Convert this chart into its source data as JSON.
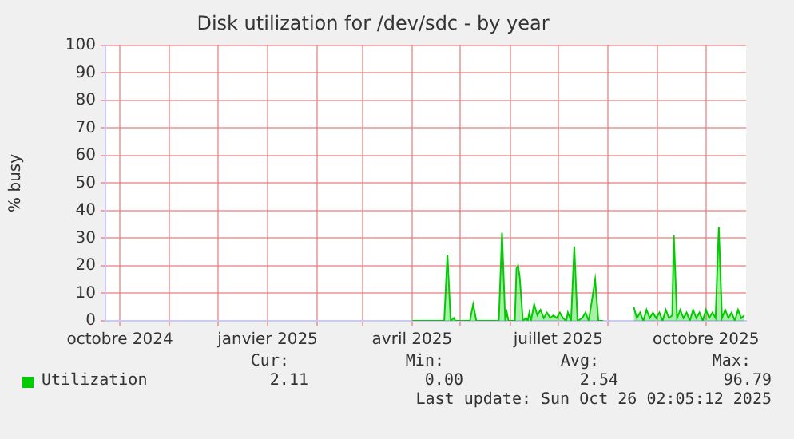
{
  "chart_data": {
    "type": "area",
    "title": "Disk utilization for /dev/sdc - by year",
    "ylabel": "% busy",
    "xlim": [
      "2024-09-22",
      "2025-10-26"
    ],
    "xticks": [
      {
        "value": "2024-10-01",
        "label": "octobre 2024"
      },
      {
        "value": "2024-11-01",
        "label": null
      },
      {
        "value": "2024-12-01",
        "label": null
      },
      {
        "value": "2025-01-01",
        "label": "janvier 2025"
      },
      {
        "value": "2025-02-01",
        "label": null
      },
      {
        "value": "2025-03-01",
        "label": null
      },
      {
        "value": "2025-04-01",
        "label": "avril 2025"
      },
      {
        "value": "2025-05-01",
        "label": null
      },
      {
        "value": "2025-06-01",
        "label": null
      },
      {
        "value": "2025-07-01",
        "label": "juillet 2025"
      },
      {
        "value": "2025-08-01",
        "label": null
      },
      {
        "value": "2025-09-01",
        "label": null
      },
      {
        "value": "2025-10-01",
        "label": "octobre 2025"
      }
    ],
    "ylim": [
      0,
      100
    ],
    "yticks": [
      0,
      10,
      20,
      30,
      40,
      50,
      60,
      70,
      80,
      90,
      100
    ],
    "grid": true,
    "legend": "bottom left",
    "marker": "none",
    "x": [
      "2025-04-01",
      "2025-04-21",
      "2025-04-23",
      "2025-04-25",
      "2025-04-27",
      "2025-04-28",
      "2025-05-07",
      "2025-05-09",
      "2025-05-11",
      "2025-05-25",
      "2025-05-27",
      "2025-05-29",
      "2025-05-30",
      "2025-05-31",
      "2025-06-04",
      "2025-06-05",
      "2025-06-06",
      "2025-06-07",
      "2025-06-09",
      "2025-06-11",
      "2025-06-12",
      "2025-06-13",
      "2025-06-14",
      "2025-06-16",
      "2025-06-18",
      "2025-06-20",
      "2025-06-22",
      "2025-06-24",
      "2025-06-26",
      "2025-06-28",
      "2025-06-30",
      "2025-07-02",
      "2025-07-04",
      "2025-07-06",
      "2025-07-07",
      "2025-07-09",
      "2025-07-11",
      "2025-07-13",
      "2025-07-16",
      "2025-07-18",
      "2025-07-20",
      "2025-07-24",
      "2025-07-26",
      "2025-07-29",
      "2025-08-08",
      "2025-08-17",
      "2025-08-19",
      "2025-08-21",
      "2025-08-23",
      "2025-08-25",
      "2025-08-27",
      "2025-08-29",
      "2025-08-31",
      "2025-09-02",
      "2025-09-04",
      "2025-09-06",
      "2025-09-08",
      "2025-09-10",
      "2025-09-11",
      "2025-09-13",
      "2025-09-15",
      "2025-09-17",
      "2025-09-19",
      "2025-09-21",
      "2025-09-23",
      "2025-09-25",
      "2025-09-27",
      "2025-09-29",
      "2025-10-01",
      "2025-10-03",
      "2025-10-05",
      "2025-10-07",
      "2025-10-09",
      "2025-10-11",
      "2025-10-13",
      "2025-10-15",
      "2025-10-17",
      "2025-10-19",
      "2025-10-21",
      "2025-10-23",
      "2025-10-25"
    ],
    "series": [
      {
        "name": "Utilization",
        "color": "#00cc00",
        "values": [
          0,
          0,
          24,
          0,
          1,
          0,
          0,
          6,
          0,
          0,
          32,
          0,
          3,
          0,
          0,
          19,
          20,
          16,
          0,
          1,
          0,
          3,
          0,
          6,
          2,
          4,
          1,
          3,
          1,
          2,
          1,
          3,
          1,
          0,
          3,
          0,
          27,
          0,
          1,
          3,
          0,
          15,
          0,
          0,
          null,
          5,
          1,
          3,
          0,
          4,
          1,
          3,
          1,
          3,
          0,
          4,
          1,
          2,
          31,
          1,
          4,
          1,
          3,
          0,
          4,
          1,
          3,
          0,
          4,
          1,
          3,
          1,
          34,
          1,
          4,
          1,
          3,
          0,
          4,
          1,
          2
        ]
      }
    ],
    "annotations": [
      "Cur:",
      "Min:",
      "Avg:",
      "Max:",
      "2.11",
      "0.00",
      "2.54",
      "96.79",
      "Last update: Sun Oct 26 02:05:12 2025"
    ]
  }
}
